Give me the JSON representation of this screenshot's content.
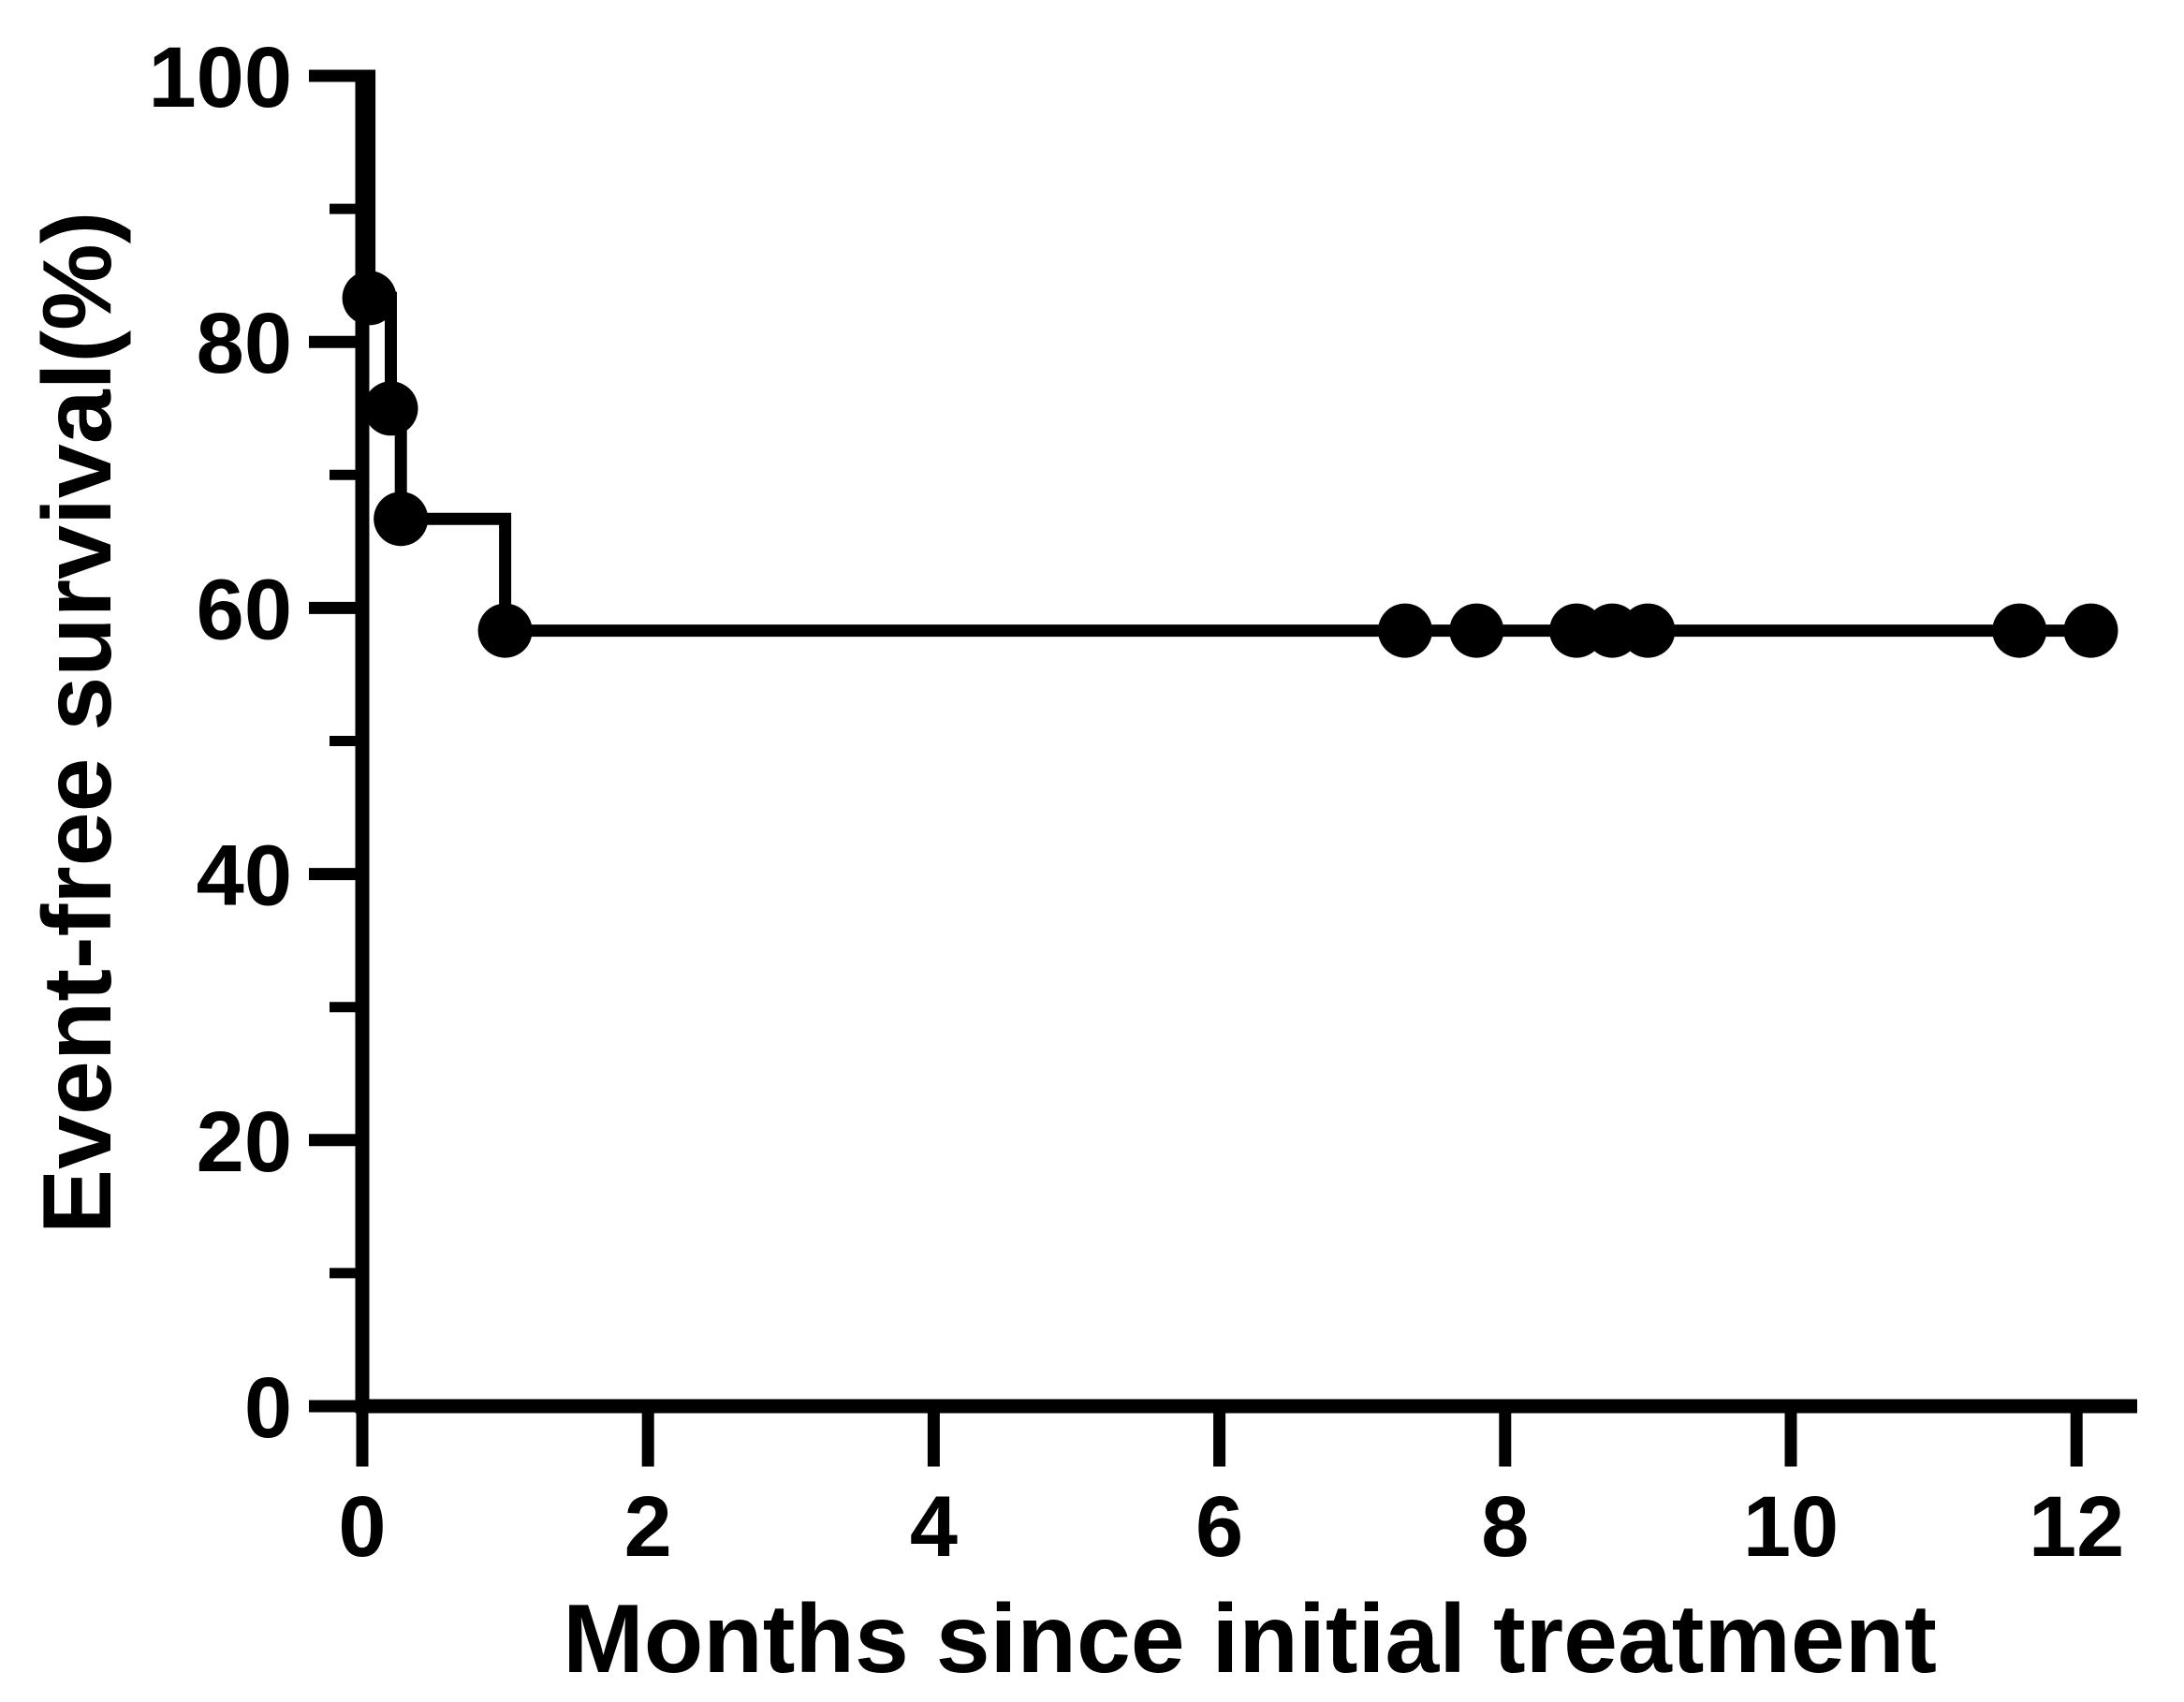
{
  "figure": {
    "background": "#ffffff",
    "ink_color": "#000000"
  },
  "chart_data": {
    "type": "line",
    "subtype": "kaplan-meier-step-curve",
    "title": "",
    "xlabel": "Months since initial treatment",
    "ylabel": "Event-free survival(%)",
    "xlim": [
      0,
      12.4
    ],
    "ylim": [
      0,
      100
    ],
    "x_ticks": [
      0,
      2,
      4,
      6,
      8,
      10,
      12
    ],
    "y_ticks_major": [
      0,
      20,
      40,
      60,
      80,
      100
    ],
    "y_ticks_minor": [
      10,
      30,
      50,
      70,
      90
    ],
    "grid": false,
    "legend": "none",
    "series": [
      {
        "name": "Event-free survival",
        "color": "#000000",
        "marker": "filled-circle",
        "step_points": [
          [
            0,
            100
          ],
          [
            0.05,
            100
          ],
          [
            0.05,
            83.3
          ],
          [
            0.2,
            83.3
          ],
          [
            0.2,
            75
          ],
          [
            0.27,
            75
          ],
          [
            0.27,
            66.7
          ],
          [
            1.0,
            66.7
          ],
          [
            1.0,
            58.3
          ],
          [
            12.1,
            58.3
          ]
        ],
        "event_markers": [
          [
            0.05,
            83.3
          ],
          [
            0.2,
            75
          ],
          [
            0.27,
            66.7
          ],
          [
            1.0,
            58.3
          ]
        ],
        "censor_markers": [
          [
            7.3,
            58.3
          ],
          [
            7.8,
            58.3
          ],
          [
            8.5,
            58.3
          ],
          [
            8.75,
            58.3
          ],
          [
            9.0,
            58.3
          ],
          [
            11.6,
            58.3
          ],
          [
            12.1,
            58.3
          ]
        ]
      }
    ]
  }
}
